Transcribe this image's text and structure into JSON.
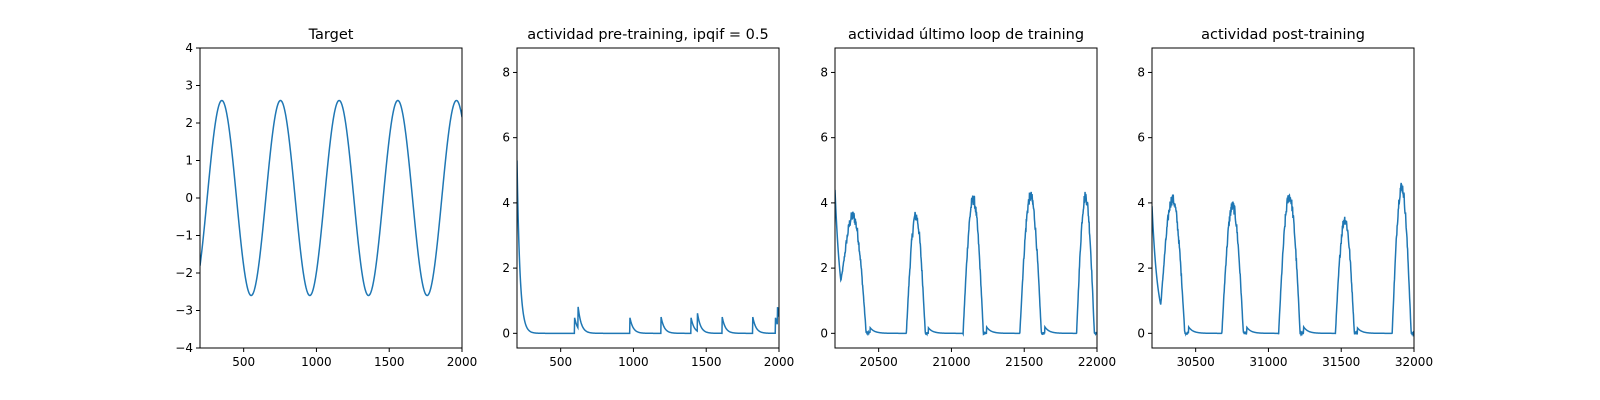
{
  "figure": {
    "line_color": "#1f77b4",
    "background": "#ffffff"
  },
  "chart_data": [
    {
      "type": "line",
      "title": "Target",
      "xlabel": "",
      "ylabel": "",
      "xlim": [
        200,
        2000
      ],
      "ylim": [
        -4,
        4
      ],
      "xticks": [
        500,
        1000,
        1500,
        2000
      ],
      "yticks": [
        -4,
        -3,
        -2,
        -1,
        0,
        1,
        2,
        3,
        4
      ],
      "xtick_labels": [
        "500",
        "1000",
        "1500",
        "2000"
      ],
      "ytick_labels": [
        "−4",
        "−3",
        "−2",
        "−1",
        "0",
        "1",
        "2",
        "3",
        "4"
      ],
      "grid": false,
      "signal": {
        "kind": "sine",
        "amplitude": 2.6,
        "period": 403,
        "peak_at": 350
      },
      "peaks": [
        [
          350,
          2.6
        ],
        [
          755,
          2.6
        ],
        [
          1158,
          2.6
        ],
        [
          1560,
          2.6
        ],
        [
          1960,
          2.6
        ]
      ],
      "troughs": [
        [
          555,
          -2.6
        ],
        [
          960,
          -2.6
        ],
        [
          1360,
          -2.6
        ],
        [
          1765,
          -2.6
        ]
      ],
      "endpoints": [
        [
          200,
          -2.0
        ],
        [
          2000,
          2.1
        ]
      ]
    },
    {
      "type": "line",
      "title": "actividad pre-training, ipqif = 0.5",
      "xlabel": "",
      "ylabel": "",
      "xlim": [
        200,
        2000
      ],
      "ylim": [
        -0.45,
        8.75
      ],
      "xticks": [
        500,
        1000,
        1500,
        2000
      ],
      "yticks": [
        0,
        2,
        4,
        6,
        8
      ],
      "xtick_labels": [
        "500",
        "1000",
        "1500",
        "2000"
      ],
      "ytick_labels": [
        "0",
        "2",
        "4",
        "6",
        "8"
      ],
      "grid": false,
      "signal": {
        "kind": "spikes",
        "start": 5.3,
        "decay": 20,
        "baseline": 0
      },
      "events": [
        [
          595,
          0.5
        ],
        [
          620,
          0.65
        ],
        [
          975,
          0.5
        ],
        [
          1190,
          0.5
        ],
        [
          1395,
          0.5
        ],
        [
          1440,
          0.55
        ],
        [
          1610,
          0.5
        ],
        [
          1820,
          0.5
        ],
        [
          1975,
          0.5
        ],
        [
          1990,
          0.55
        ]
      ]
    },
    {
      "type": "line",
      "title": "actividad último loop de training",
      "xlabel": "",
      "ylabel": "",
      "xlim": [
        20200,
        22000
      ],
      "ylim": [
        -0.45,
        8.75
      ],
      "xticks": [
        20500,
        21000,
        21500,
        22000
      ],
      "yticks": [
        0,
        2,
        4,
        6,
        8
      ],
      "xtick_labels": [
        "20500",
        "21000",
        "21500",
        "22000"
      ],
      "ytick_labels": [
        "0",
        "2",
        "4",
        "6",
        "8"
      ],
      "grid": false,
      "signal": {
        "kind": "bursts",
        "start": 4.4,
        "decay": 40,
        "noise": 0.18,
        "baseline": 0
      },
      "bursts": [
        [
          20240,
          20440,
          3.4
        ],
        [
          20690,
          20840,
          3.6
        ],
        [
          21080,
          21240,
          4.1
        ],
        [
          21470,
          21640,
          4.2
        ],
        [
          21860,
          22000,
          4.2
        ]
      ]
    },
    {
      "type": "line",
      "title": "actividad post-training",
      "xlabel": "",
      "ylabel": "",
      "xlim": [
        30200,
        32000
      ],
      "ylim": [
        -0.45,
        8.75
      ],
      "xticks": [
        30500,
        31000,
        31500,
        32000
      ],
      "yticks": [
        0,
        2,
        4,
        6,
        8
      ],
      "xtick_labels": [
        "30500",
        "31000",
        "31500",
        "32000"
      ],
      "ytick_labels": [
        "0",
        "2",
        "4",
        "6",
        "8"
      ],
      "grid": false,
      "signal": {
        "kind": "bursts",
        "start": 3.9,
        "decay": 40,
        "noise": 0.18,
        "baseline": 0
      },
      "bursts": [
        [
          30260,
          30450,
          4.0
        ],
        [
          30680,
          30850,
          3.9
        ],
        [
          31070,
          31240,
          4.2
        ],
        [
          31460,
          31610,
          3.5
        ],
        [
          31850,
          32000,
          4.5
        ]
      ]
    }
  ]
}
